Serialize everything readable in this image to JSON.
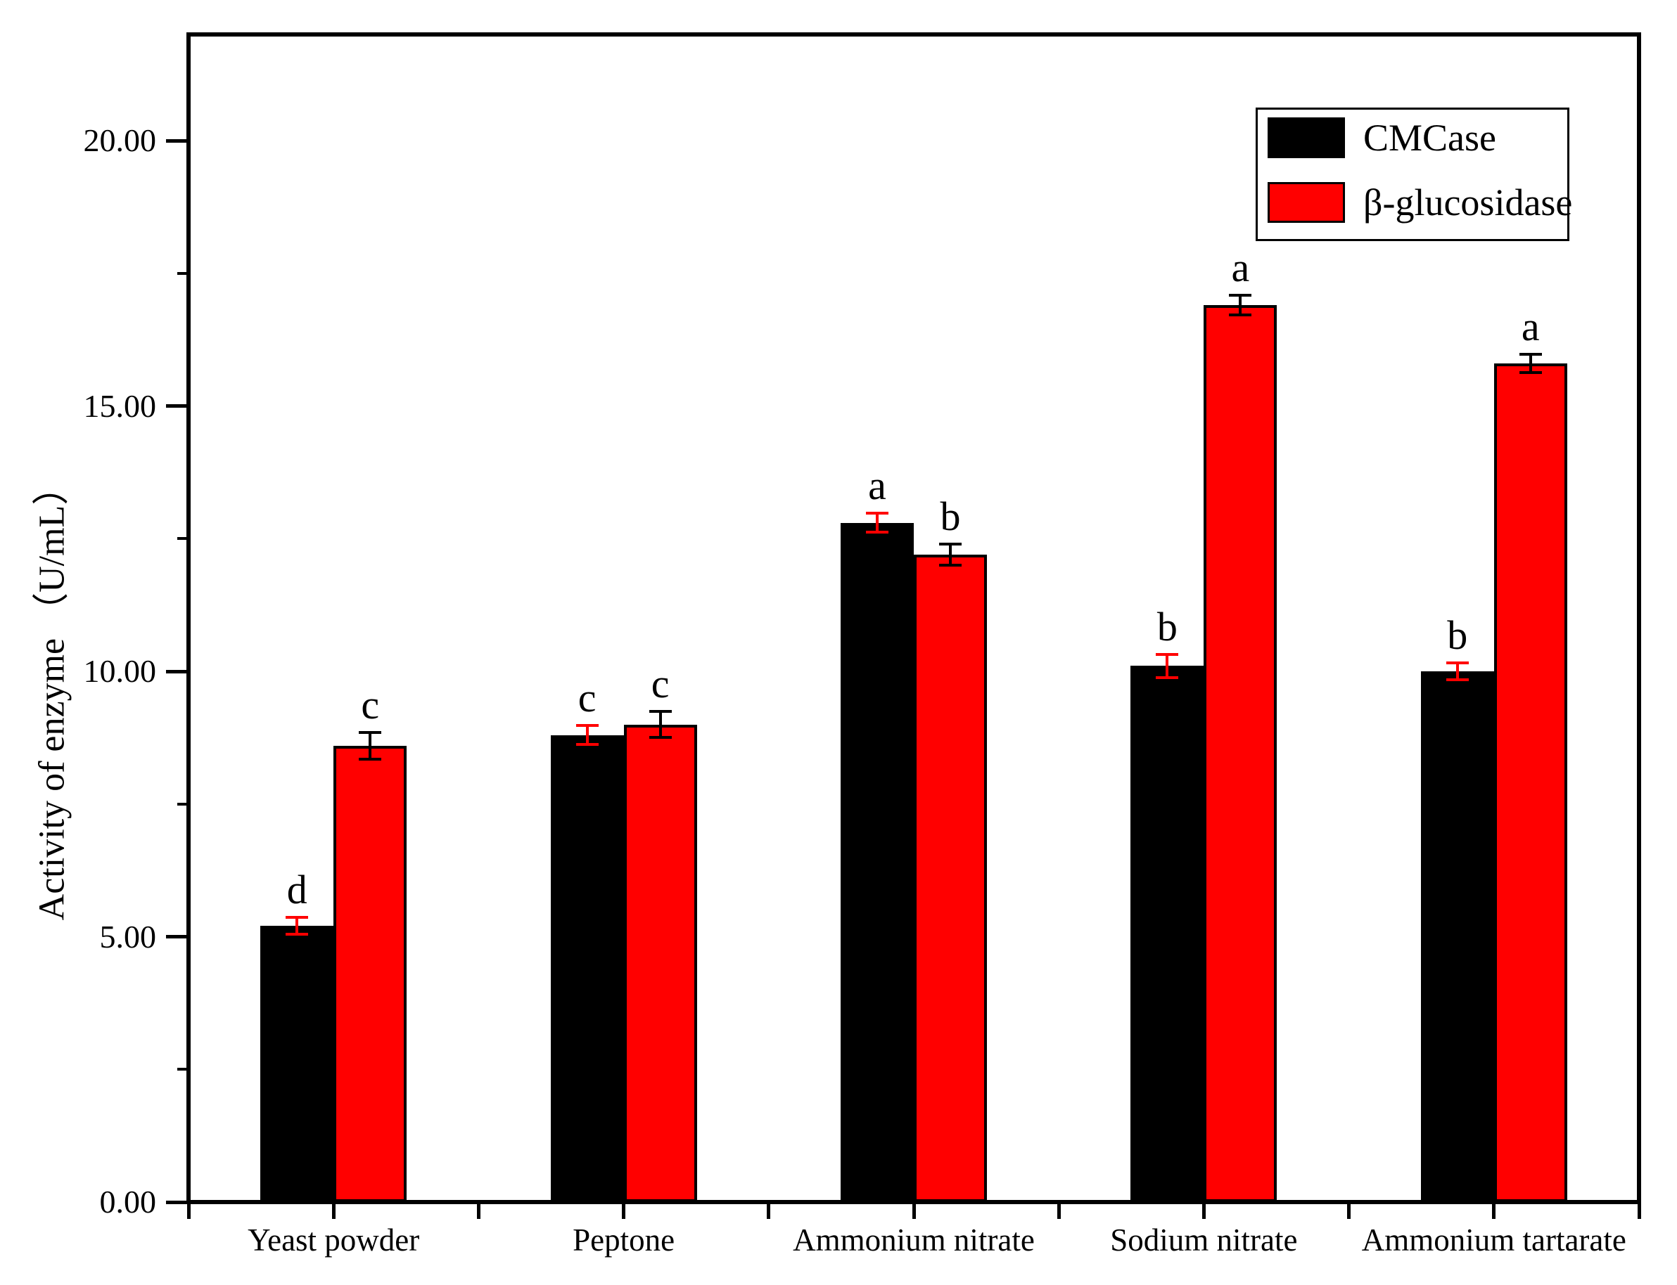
{
  "chart_data": {
    "type": "bar",
    "title": "",
    "categories": [
      "Yeast powder",
      "Peptone",
      "Ammonium nitrate",
      "Sodium nitrate",
      "Ammonium tartarate"
    ],
    "series": [
      {
        "name": "CMCase",
        "color": "#000000",
        "error_bar_color": "#ff0000",
        "values": [
          5.2,
          8.8,
          12.8,
          10.1,
          10.0
        ],
        "errors": [
          0.16,
          0.18,
          0.18,
          0.22,
          0.16
        ],
        "sig_letters": [
          "d",
          "c",
          "a",
          "b",
          "b"
        ]
      },
      {
        "name": "β-glucosidase",
        "color": "#ff0000",
        "error_bar_color": "#000000",
        "values": [
          8.6,
          9.0,
          12.2,
          16.9,
          15.8
        ],
        "errors": [
          0.25,
          0.25,
          0.2,
          0.19,
          0.17
        ],
        "sig_letters": [
          "c",
          "c",
          "b",
          "a",
          "a"
        ]
      }
    ],
    "xlabel": "",
    "ylabel": "Activity of enzyme （U/mL）",
    "ylim": [
      0,
      22
    ],
    "yticks": [
      0,
      5,
      10,
      15,
      20
    ],
    "ytick_labels": [
      "0.00",
      "5.00",
      "10.00",
      "15.00",
      "20.00"
    ],
    "yminor_ticks": [
      2.5,
      7.5,
      12.5,
      17.5
    ],
    "x_tick_style": "ticks at category centers and boundaries, outside axis",
    "grid": false,
    "legend_position": "top-right",
    "axis_color": "#000000",
    "background_color": "#ffffff"
  }
}
